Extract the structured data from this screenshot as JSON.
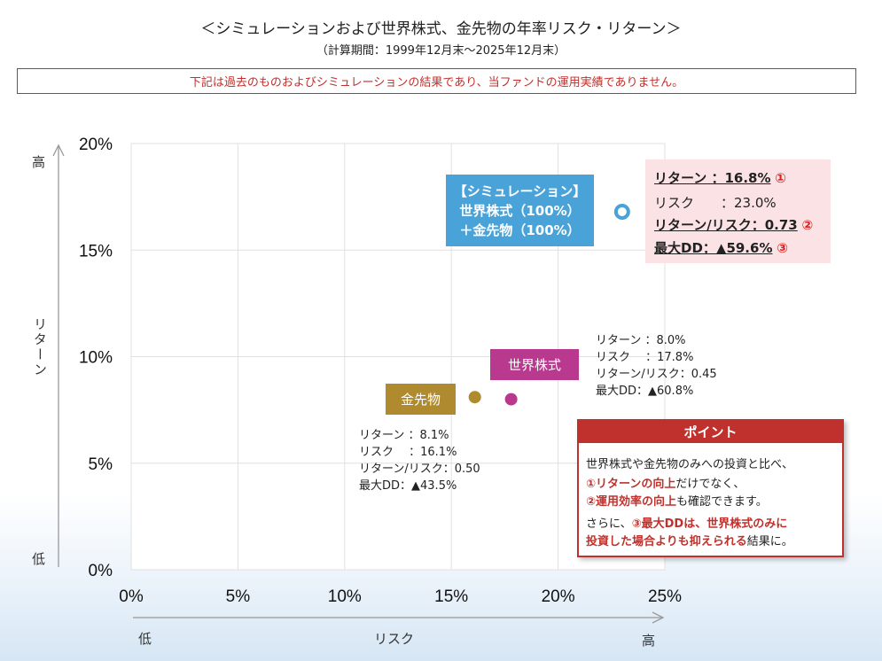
{
  "title": "＜シミュレーションおよび世界株式、金先物の年率リスク・リターン＞",
  "subtitle": "（計算期間：1999年12月末～2025年12月末）",
  "disclaimer": "下記は過去のものおよびシミュレーションの結果であり、当ファンドの運用実績でありません。",
  "axis_words": {
    "y_high": "高",
    "y_low": "低",
    "y_label": "リターン",
    "x_low": "低",
    "x_label": "リスク",
    "x_high": "高"
  },
  "chart_data": {
    "type": "scatter",
    "xlabel": "リスク",
    "ylabel": "リターン",
    "xlim": [
      0,
      25
    ],
    "ylim": [
      0,
      20
    ],
    "x_ticks": [
      "0%",
      "5%",
      "10%",
      "15%",
      "20%",
      "25%"
    ],
    "y_ticks": [
      "0%",
      "5%",
      "10%",
      "15%",
      "20%"
    ],
    "grid": true,
    "series": [
      {
        "name": "【シミュレーション】世界株式（100%）＋金先物（100%）",
        "x": 23.0,
        "y": 16.8,
        "color": "#4aa3d8",
        "marker": "ring"
      },
      {
        "name": "世界株式",
        "x": 17.8,
        "y": 8.0,
        "color": "#b8398e",
        "marker": "dot"
      },
      {
        "name": "金先物",
        "x": 16.1,
        "y": 8.1,
        "color": "#b08a2e",
        "marker": "dot"
      }
    ]
  },
  "labels": {
    "sim": [
      "【シミュレーション】",
      "世界株式（100%）",
      "＋金先物（100%）"
    ],
    "world": "世界株式",
    "gold": "金先物"
  },
  "sim_stats": {
    "return": "リターン ：16.8%",
    "return_mark": "①",
    "risk": "リスク　　：23.0%",
    "ratio": "リターン/リスク：0.73",
    "ratio_mark": "②",
    "dd": "最大DD：▲59.6%",
    "dd_mark": "③"
  },
  "world_stats": [
    "リターン ：8.0%",
    "リスク　 ：17.8%",
    "リターン/リスク：0.45",
    "最大DD：▲60.8%"
  ],
  "gold_stats": [
    "リターン ：8.1%",
    "リスク　 ：16.1%",
    "リターン/リスク：0.50",
    "最大DD：▲43.5%"
  ],
  "point": {
    "heading": "ポイント",
    "line1": "世界株式や金先物のみへの投資と比べ、",
    "line2_red": "①リターンの向上",
    "line2_rest": "だけでなく、",
    "line3_red": "②運用効率の向上",
    "line3_rest": "も確認できます。",
    "line4_pre": "さらに、",
    "line4_red": "③最大DDは、世界株式のみに",
    "line5_red": "投資した場合よりも抑えられる",
    "line5_rest": "結果に。"
  }
}
